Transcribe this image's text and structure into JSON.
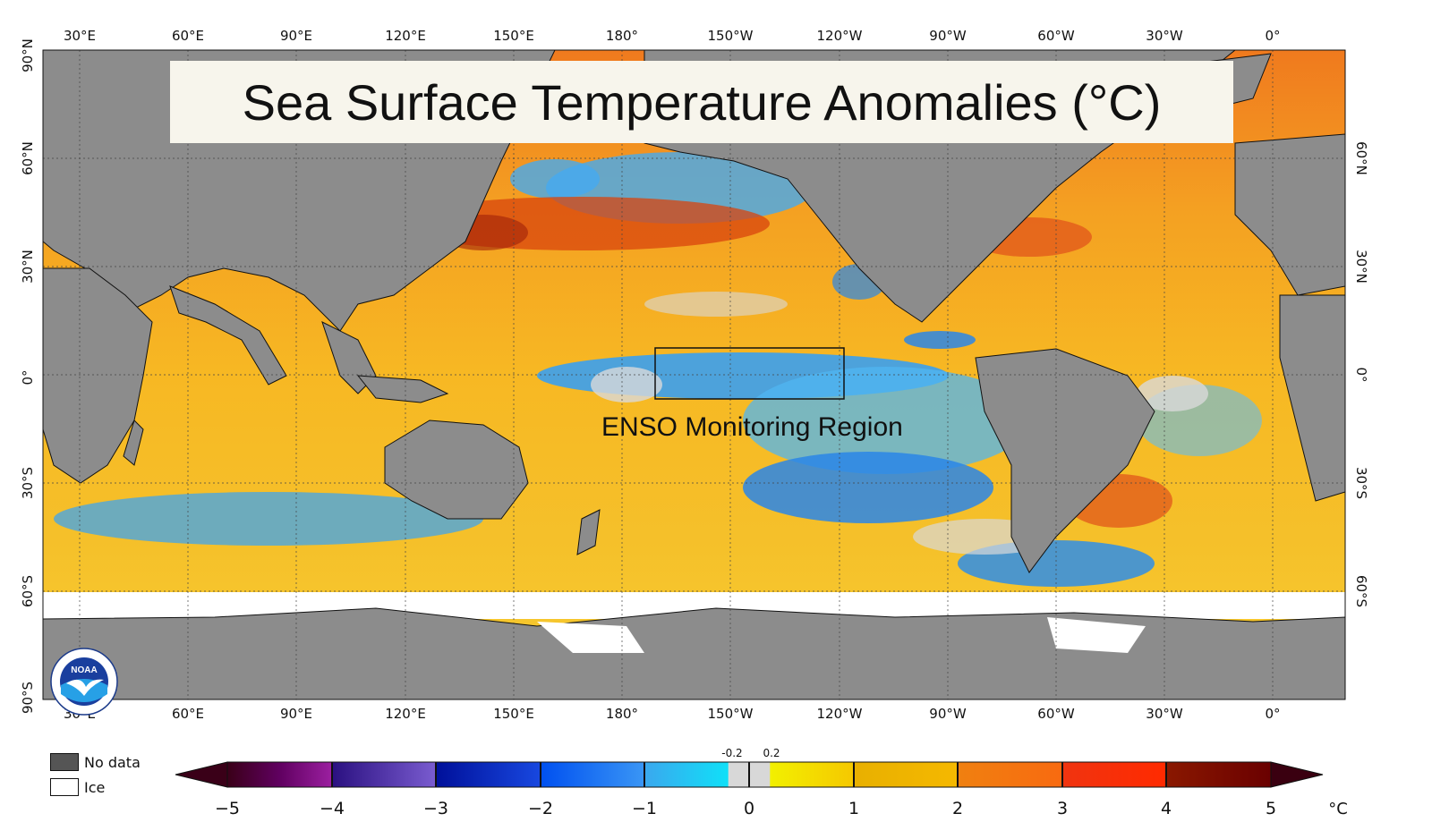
{
  "title": "Sea Surface Temperature Anomalies (°C)",
  "region_label": "ENSO Monitoring Region",
  "longitude_labels": [
    "30°E",
    "60°E",
    "90°E",
    "120°E",
    "150°E",
    "180°",
    "150°W",
    "120°W",
    "90°W",
    "60°W",
    "30°W",
    "0°"
  ],
  "latitude_labels_left": [
    "90°N",
    "60°N",
    "30°N",
    "0°",
    "30°S",
    "60°S",
    "90°S"
  ],
  "latitude_labels_right": [
    "60°N",
    "30°N",
    "0°",
    "30°S",
    "60°S"
  ],
  "legend": {
    "no_data": "No data",
    "ice": "Ice"
  },
  "colorbar": {
    "tick_labels": [
      "−5",
      "−4",
      "−3",
      "−2",
      "−1",
      "0",
      "1",
      "2",
      "3",
      "4",
      "5"
    ],
    "small_labels": [
      "-0.2",
      "0.2"
    ],
    "unit": "°C"
  },
  "colors": {
    "land": "#8c8c8c",
    "ice": "#ffffff",
    "no_data": "#555555",
    "neutral": "#d9d9d9",
    "warm": "#f6b020",
    "cool": "#37a6ee"
  },
  "logo_name": "NOAA"
}
